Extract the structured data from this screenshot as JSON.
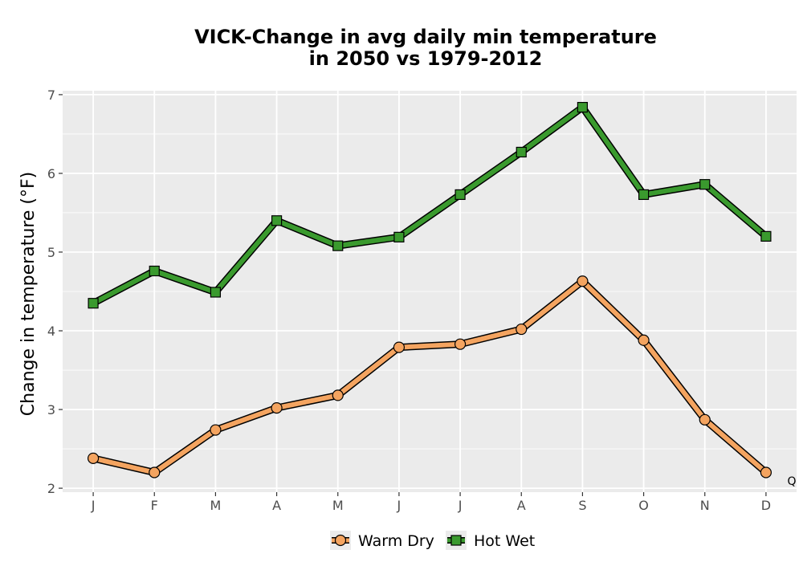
{
  "chart_data": {
    "type": "line",
    "title_line1": "VICK-Change in avg daily min temperature",
    "title_line2": "in 2050 vs 1979-2012",
    "ylabel": "Change in temperature (°F)",
    "xlabel": "",
    "categories": [
      "J",
      "F",
      "M",
      "A",
      "M",
      "J",
      "J",
      "A",
      "S",
      "O",
      "N",
      "D"
    ],
    "ylim": [
      1.95,
      7.05
    ],
    "yticks": [
      2,
      3,
      4,
      5,
      6,
      7
    ],
    "grid": true,
    "legend_position": "bottom",
    "series": [
      {
        "name": "Warm Dry",
        "marker": "circle",
        "color": "#f4a460",
        "values": [
          2.38,
          2.2,
          2.74,
          3.02,
          3.18,
          3.79,
          3.83,
          4.02,
          4.63,
          3.88,
          2.87,
          2.2
        ]
      },
      {
        "name": "Hot Wet",
        "marker": "square",
        "color": "#3a9a2e",
        "values": [
          4.35,
          4.76,
          4.49,
          5.4,
          5.08,
          5.19,
          5.73,
          6.27,
          6.84,
          5.73,
          5.86,
          5.2
        ]
      }
    ],
    "corner_mark": "Q"
  },
  "colors": {
    "panel_background": "#ebebeb",
    "gridline": "#ffffff",
    "outline": "#000000"
  }
}
